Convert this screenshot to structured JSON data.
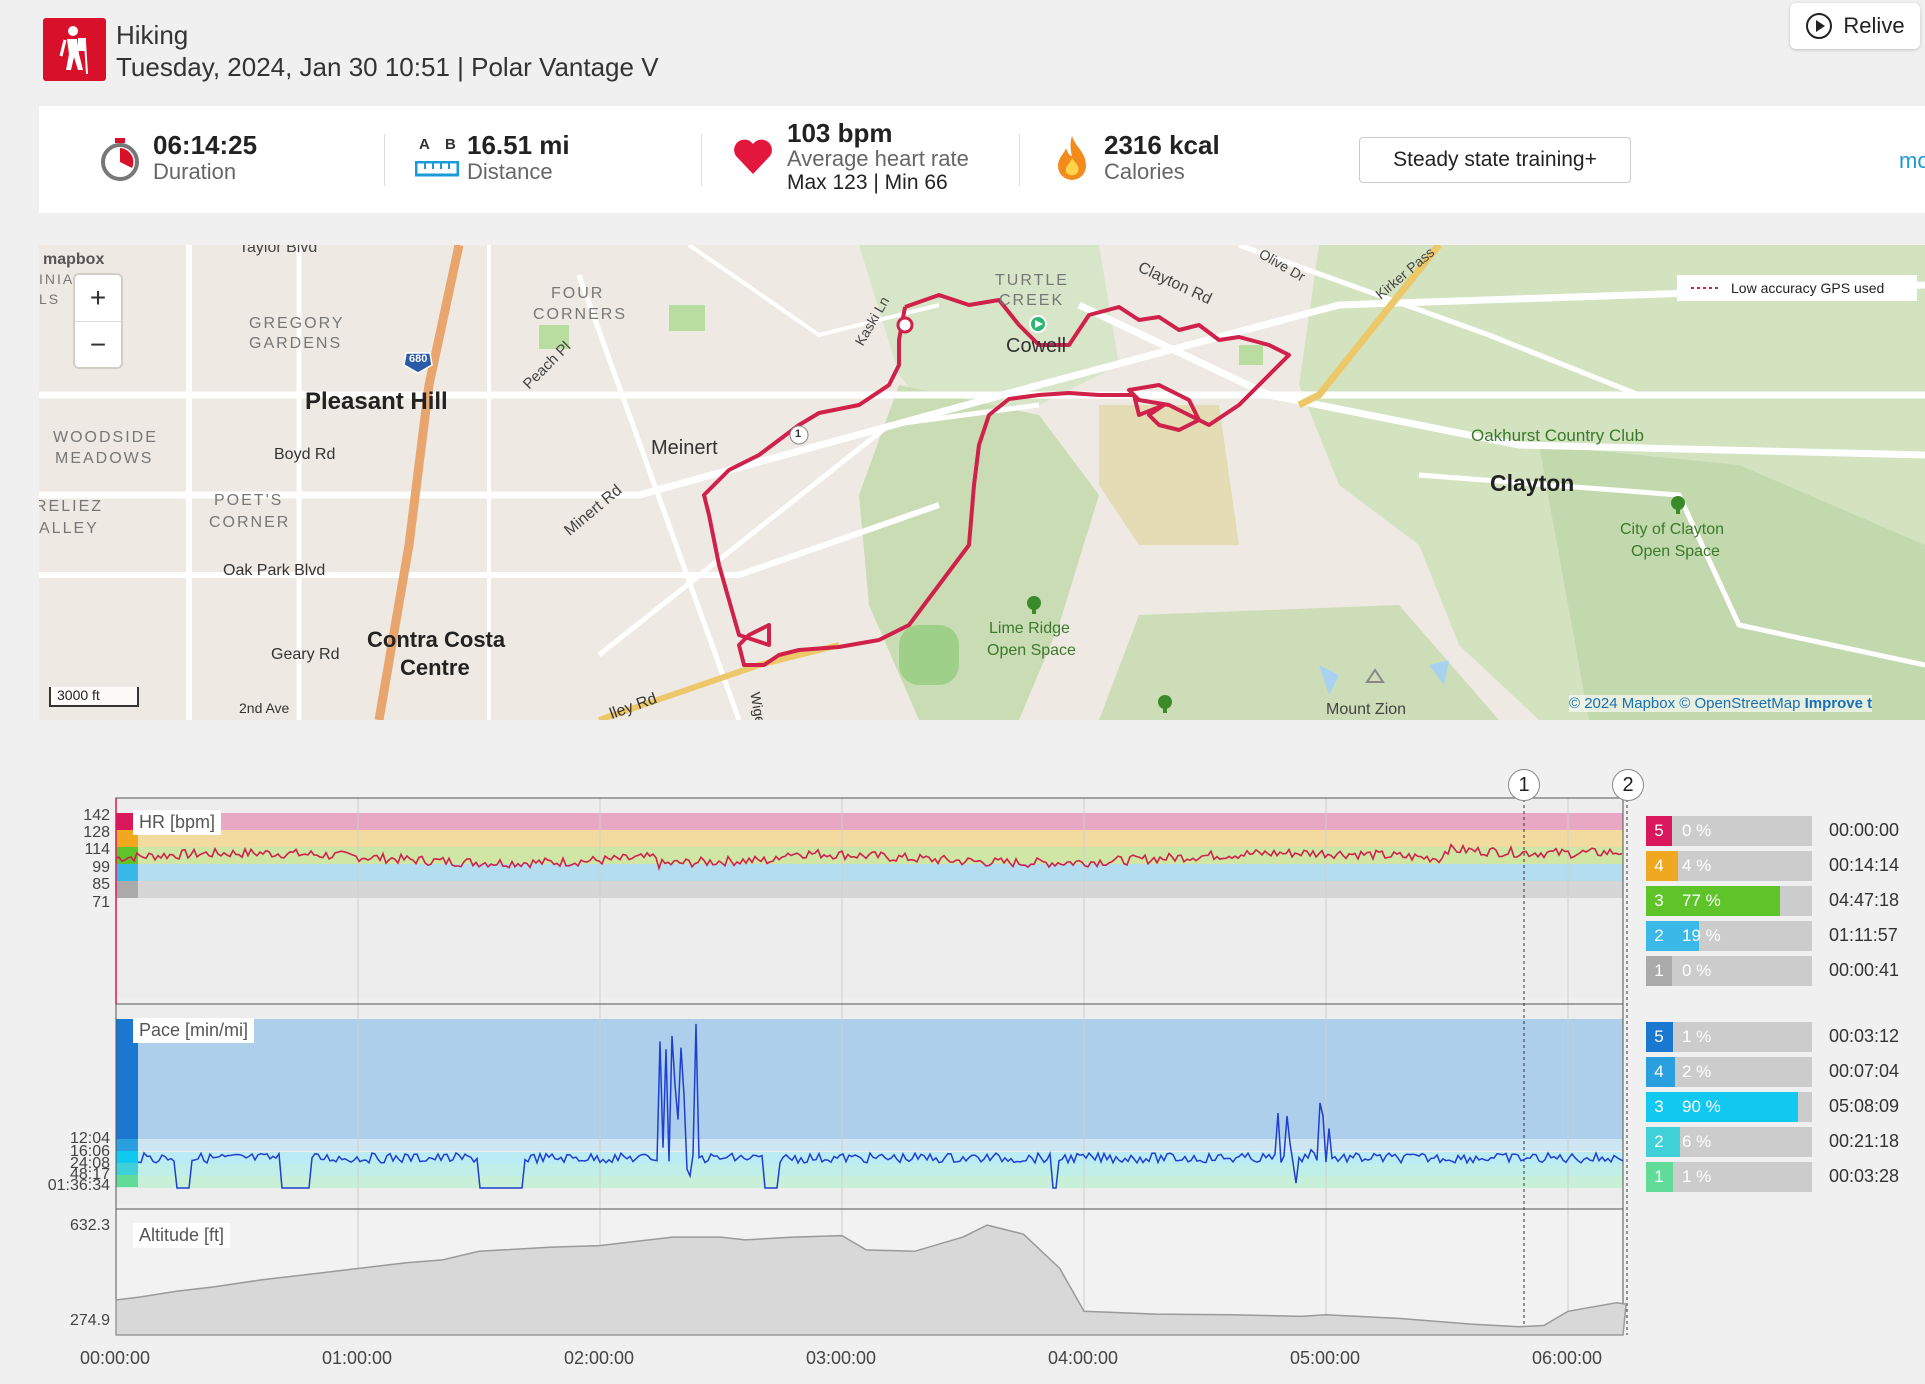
{
  "header": {
    "sport": "Hiking",
    "subtitle": "Tuesday, 2024, Jan 30 10:51  |  Polar Vantage V",
    "sport_icon": "hiking-icon",
    "relive_label": "Relive"
  },
  "stats": {
    "duration": {
      "value": "06:14:25",
      "label": "Duration"
    },
    "distance": {
      "value": "16.51 mi",
      "label": "Distance",
      "a": "A",
      "b": "B"
    },
    "heart": {
      "value": "103 bpm",
      "label": "Average heart rate",
      "maxmin": "Max 123  |  Min 66"
    },
    "calories": {
      "value": "2316 kcal",
      "label": "Calories"
    },
    "training_benefit": "Steady state training+",
    "more_label": "mo"
  },
  "map": {
    "logo": "mapbox",
    "legend": "Low accuracy GPS used",
    "scale": "3000 ft",
    "attribution_a": "© 2024 Mapbox",
    "attribution_b": " © OpenStreetMap ",
    "attribution_c": "Improve t",
    "zoom_in": "+",
    "zoom_out": "−",
    "labels": {
      "taylor": "Taylor Blvd",
      "gregory": "GREGORY",
      "gardens": "GARDENS",
      "pleasant_hill": "Pleasant Hill",
      "four": "FOUR",
      "corners": "CORNERS",
      "peach": "Peach Pl",
      "kaski": "Kaski Ln",
      "turtle": "TURTLE",
      "creek": "CREEK",
      "cowell": "Cowell",
      "clayton_rd": "Clayton Rd",
      "olive": "Olive Dr",
      "kirker": "Kirker Pass",
      "woodside": "WOODSIDE",
      "meadows": "MEADOWS",
      "boyd": "Boyd Rd",
      "meinert": "Meinert",
      "minert_rd": "Minert Rd",
      "poets": "POET'S",
      "corner": "CORNER",
      "oak_park": "Oak Park Blvd",
      "geary": "Geary Rd",
      "contra": "Contra Costa",
      "centre": "Centre",
      "second_ave": "2nd Ave",
      "valley": "lley Rd",
      "wige": "Wige",
      "oakhurst": "Oakhurst Country Club",
      "clayton": "Clayton",
      "city_of": "City of Clayton",
      "open_space": "Open Space",
      "lime": "Lime Ridge",
      "lime_os": "Open Space",
      "zion": "Mount Zion",
      "relieZ": "RELIEZ",
      "alley": "ALLEY",
      "inia": "INIA",
      "ls": "LS",
      "hwy680": "680",
      "route1": "1"
    }
  },
  "hr_chart": {
    "title": "HR [bpm]",
    "yticks": [
      "142",
      "128",
      "114",
      "99",
      "85",
      "71"
    ],
    "zones": [
      {
        "n": "5",
        "pct": "0 %",
        "frac": 0.0,
        "time": "00:00:00",
        "color": "#d8185a"
      },
      {
        "n": "4",
        "pct": "4 %",
        "frac": 0.04,
        "time": "00:14:14",
        "color": "#f0a820"
      },
      {
        "n": "3",
        "pct": "77 %",
        "frac": 0.77,
        "time": "04:47:18",
        "color": "#5ec42a"
      },
      {
        "n": "2",
        "pct": "19 %",
        "frac": 0.19,
        "time": "01:11:57",
        "color": "#3ab8e8"
      },
      {
        "n": "1",
        "pct": "0 %",
        "frac": 0.0,
        "time": "00:00:41",
        "color": "#aaaaaa"
      }
    ]
  },
  "pace_chart": {
    "title": "Pace [min/mi]",
    "yticks": [
      "12:04",
      "16:06",
      "24:08",
      "48:17",
      "01:36:34"
    ],
    "zones": [
      {
        "n": "5",
        "pct": "1 %",
        "frac": 0.01,
        "time": "00:03:12",
        "color": "#1a78d0"
      },
      {
        "n": "4",
        "pct": "2 %",
        "frac": 0.02,
        "time": "00:07:04",
        "color": "#2aa0e0"
      },
      {
        "n": "3",
        "pct": "90 %",
        "frac": 0.9,
        "time": "05:08:09",
        "color": "#10c8f0"
      },
      {
        "n": "2",
        "pct": "6 %",
        "frac": 0.06,
        "time": "00:21:18",
        "color": "#40d0d8"
      },
      {
        "n": "1",
        "pct": "1 %",
        "frac": 0.01,
        "time": "00:03:28",
        "color": "#60dc98"
      }
    ]
  },
  "alt_chart": {
    "title": "Altitude [ft]",
    "ymax": "632.3",
    "ymin": "274.9",
    "series_hours": [
      0,
      0.1,
      0.25,
      0.4,
      0.6,
      0.8,
      1.0,
      1.2,
      1.35,
      1.5,
      1.6,
      1.8,
      2.0,
      2.1,
      2.3,
      2.5,
      2.6,
      2.8,
      3.0,
      3.1,
      3.3,
      3.5,
      3.6,
      3.75,
      3.9,
      4.0,
      4.3,
      4.6,
      4.9,
      5.0,
      5.3,
      5.6,
      5.8,
      5.9,
      6.0,
      6.2,
      6.24
    ],
    "series_ft": [
      370,
      380,
      400,
      415,
      440,
      460,
      480,
      500,
      510,
      540,
      545,
      555,
      560,
      570,
      590,
      590,
      580,
      590,
      595,
      545,
      540,
      590,
      632,
      600,
      480,
      330,
      320,
      318,
      312,
      318,
      305,
      285,
      276,
      280,
      330,
      360,
      355
    ]
  },
  "x_axis": [
    "00:00:00",
    "01:00:00",
    "02:00:00",
    "03:00:00",
    "04:00:00",
    "05:00:00",
    "06:00:00"
  ],
  "markers": [
    "1",
    "2"
  ]
}
